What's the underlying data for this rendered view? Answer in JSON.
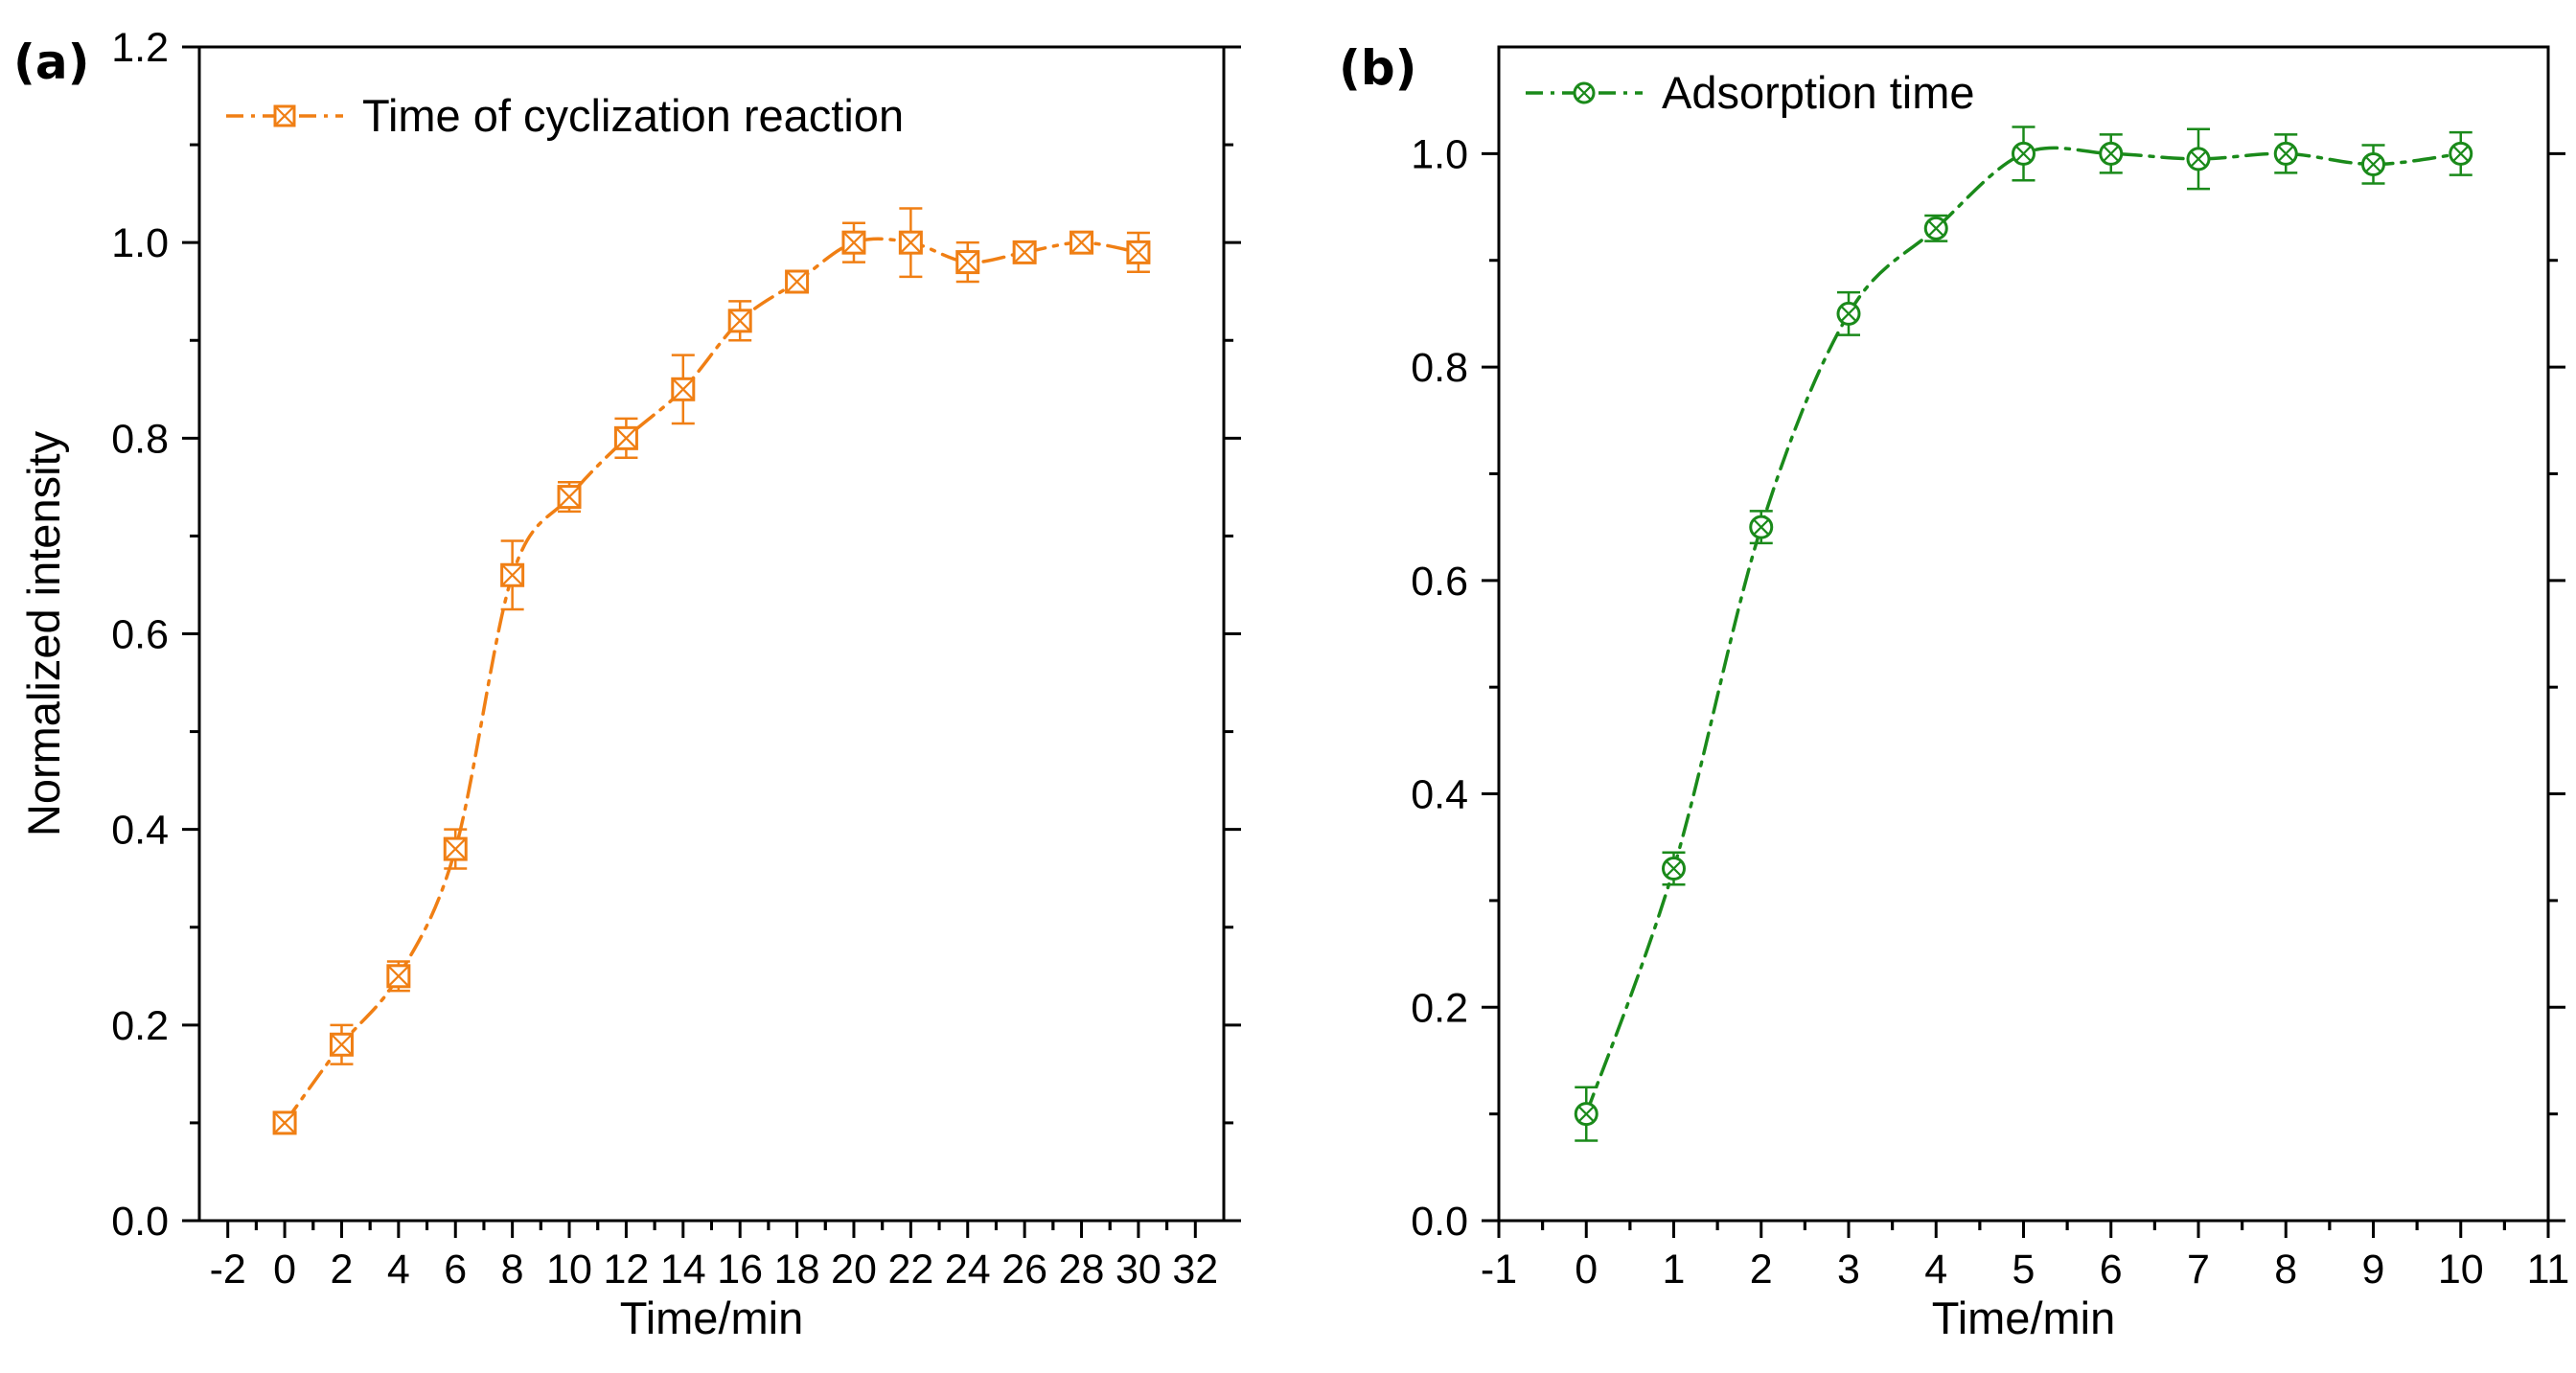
{
  "chart_data": [
    {
      "type": "line",
      "panel_label": "(a)",
      "title": "",
      "xlabel": "Time/min",
      "ylabel": "Normalized intensity",
      "xlim": [
        -3,
        33
      ],
      "ylim": [
        0,
        1.2
      ],
      "x_ticks": [
        -2,
        0,
        2,
        4,
        6,
        8,
        10,
        12,
        14,
        16,
        18,
        20,
        22,
        24,
        26,
        28,
        30,
        32
      ],
      "y_ticks": [
        0.0,
        0.2,
        0.4,
        0.6,
        0.8,
        1.0,
        1.2
      ],
      "x_tick_labels": [
        "-2",
        "0",
        "2",
        "4",
        "6",
        "8",
        "10",
        "12",
        "14",
        "16",
        "18",
        "20",
        "22",
        "24",
        "26",
        "28",
        "30",
        "32"
      ],
      "y_tick_labels": [
        "0.0",
        "0.2",
        "0.4",
        "0.6",
        "0.8",
        "1.0",
        "1.2"
      ],
      "legend_position": "top-left",
      "grid": false,
      "color": "#f07f14",
      "marker": "square-cross",
      "line_style": "dash-dot",
      "series": [
        {
          "name": "Time of cyclization reaction",
          "x": [
            0,
            2,
            4,
            6,
            8,
            10,
            12,
            14,
            16,
            18,
            20,
            22,
            24,
            26,
            28,
            30
          ],
          "y": [
            0.1,
            0.18,
            0.25,
            0.38,
            0.66,
            0.74,
            0.8,
            0.85,
            0.92,
            0.96,
            1.0,
            1.0,
            0.98,
            0.99,
            1.0,
            0.99
          ],
          "error": [
            0.01,
            0.02,
            0.015,
            0.02,
            0.035,
            0.015,
            0.02,
            0.035,
            0.02,
            0.01,
            0.02,
            0.035,
            0.02,
            0.01,
            0.01,
            0.02
          ]
        }
      ]
    },
    {
      "type": "line",
      "panel_label": "(b)",
      "title": "",
      "xlabel": "Time/min",
      "ylabel": "",
      "xlim": [
        -1,
        11
      ],
      "ylim": [
        0,
        1.1
      ],
      "x_ticks": [
        -1,
        0,
        1,
        2,
        3,
        4,
        5,
        6,
        7,
        8,
        9,
        10,
        11
      ],
      "y_ticks": [
        0.0,
        0.2,
        0.4,
        0.6,
        0.8,
        1.0
      ],
      "x_tick_labels": [
        "-1",
        "0",
        "1",
        "2",
        "3",
        "4",
        "5",
        "6",
        "7",
        "8",
        "9",
        "10",
        "11"
      ],
      "y_tick_labels": [
        "0.0",
        "0.2",
        "0.4",
        "0.6",
        "0.8",
        "1.0"
      ],
      "legend_position": "top-left",
      "grid": false,
      "color": "#1a8a1a",
      "marker": "circle-cross",
      "line_style": "dash-dot",
      "series": [
        {
          "name": "Adsorption time",
          "x": [
            0,
            1,
            2,
            3,
            4,
            5,
            6,
            7,
            8,
            9,
            10
          ],
          "y": [
            0.1,
            0.33,
            0.65,
            0.85,
            0.93,
            1.0,
            1.0,
            0.995,
            1.0,
            0.99,
            1.0
          ],
          "error": [
            0.025,
            0.015,
            0.015,
            0.02,
            0.012,
            0.025,
            0.018,
            0.028,
            0.018,
            0.018,
            0.02
          ]
        }
      ]
    }
  ]
}
